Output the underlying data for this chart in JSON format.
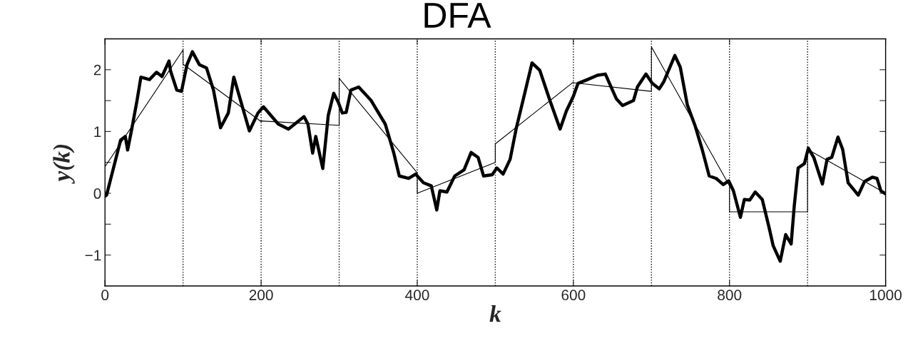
{
  "chart_data": {
    "type": "line",
    "title": "DFA",
    "xlabel": "k",
    "ylabel": "y(k)",
    "xlim": [
      0,
      1000
    ],
    "ylim": [
      -1.5,
      2.5
    ],
    "xticks": [
      0,
      200,
      400,
      600,
      800,
      1000
    ],
    "yticks": [
      -1,
      {
        "value": -0.5,
        "label": null
      },
      0,
      {
        "value": 0.5,
        "label": null
      },
      1,
      {
        "value": 1.5,
        "label": null
      },
      2
    ],
    "grid": false,
    "legend": false,
    "marker": "none",
    "ref_lines": [
      {
        "axis": "x",
        "value": 100,
        "color": "#000000",
        "line_style": "dotted"
      },
      {
        "axis": "x",
        "value": 200,
        "color": "#000000",
        "line_style": "dotted"
      },
      {
        "axis": "x",
        "value": 300,
        "color": "#000000",
        "line_style": "dotted"
      },
      {
        "axis": "x",
        "value": 400,
        "color": "#000000",
        "line_style": "dotted"
      },
      {
        "axis": "x",
        "value": 500,
        "color": "#000000",
        "line_style": "dotted"
      },
      {
        "axis": "x",
        "value": 600,
        "color": "#000000",
        "line_style": "dotted"
      },
      {
        "axis": "x",
        "value": 700,
        "color": "#000000",
        "line_style": "dotted"
      },
      {
        "axis": "x",
        "value": 800,
        "color": "#000000",
        "line_style": "dotted"
      },
      {
        "axis": "x",
        "value": 900,
        "color": "#000000",
        "line_style": "dotted"
      }
    ],
    "series": [
      {
        "color": "#000000",
        "line_style": "solid",
        "x": [
          0,
          2,
          20,
          26,
          29,
          34,
          41,
          46,
          57,
          66,
          73,
          82,
          84,
          92,
          98,
          105,
          112,
          121,
          130,
          139,
          148,
          158,
          165,
          173,
          185,
          196,
          203,
          222,
          235,
          255,
          260,
          266,
          270,
          279,
          286,
          293,
          299,
          304,
          309,
          315,
          325,
          341,
          359,
          370,
          377,
          389,
          398,
          408,
          418,
          425,
          429,
          438,
          448,
          460,
          469,
          478,
          485,
          496,
          502,
          510,
          519,
          527,
          536,
          547,
          557,
          570,
          583,
          591,
          600,
          606,
          618,
          631,
          641,
          655,
          663,
          677,
          682,
          693,
          701,
          710,
          716,
          730,
          737,
          746,
          756,
          765,
          774,
          783,
          792,
          799,
          805,
          814,
          819,
          826,
          833,
          842,
          851,
          856,
          865,
          872,
          879,
          883,
          888,
          896,
          901,
          908,
          919,
          925,
          931,
          939,
          945,
          952,
          965,
          973,
          983,
          989,
          994,
          1000
        ],
        "values": [
          -0.05,
          -0.03,
          0.86,
          0.92,
          0.7,
          1.02,
          1.5,
          1.88,
          1.84,
          1.96,
          1.89,
          2.14,
          1.98,
          1.67,
          1.65,
          2.08,
          2.29,
          2.08,
          2.03,
          1.67,
          1.06,
          1.3,
          1.88,
          1.53,
          1.01,
          1.3,
          1.4,
          1.12,
          1.04,
          1.24,
          1.12,
          0.65,
          0.92,
          0.4,
          1.26,
          1.62,
          1.47,
          1.3,
          1.31,
          1.67,
          1.72,
          1.5,
          1.12,
          0.65,
          0.28,
          0.24,
          0.31,
          0.17,
          0.12,
          -0.27,
          0.04,
          0.02,
          0.28,
          0.38,
          0.66,
          0.58,
          0.28,
          0.3,
          0.41,
          0.31,
          0.55,
          1.06,
          1.53,
          2.11,
          1.99,
          1.5,
          1.04,
          1.33,
          1.57,
          1.78,
          1.84,
          1.91,
          1.93,
          1.53,
          1.42,
          1.5,
          1.72,
          1.93,
          1.78,
          1.69,
          1.81,
          2.23,
          2.04,
          1.43,
          1.09,
          0.71,
          0.28,
          0.24,
          0.14,
          0.2,
          0.04,
          -0.39,
          -0.1,
          -0.11,
          0.02,
          -0.1,
          -0.57,
          -0.85,
          -1.1,
          -0.67,
          -0.82,
          -0.2,
          0.41,
          0.48,
          0.73,
          0.58,
          0.15,
          0.55,
          0.58,
          0.91,
          0.71,
          0.17,
          -0.03,
          0.19,
          0.26,
          0.24,
          0.04,
          -0.01
        ]
      },
      {
        "color": "#000000",
        "line_style": "solid",
        "x": [
          0,
          100,
          100,
          200,
          200,
          300,
          300,
          400,
          400,
          500,
          500,
          600,
          600,
          700,
          700,
          800,
          800,
          900,
          900,
          1000
        ],
        "values": [
          0.43,
          2.32,
          2.09,
          1.16,
          1.17,
          1.1,
          1.86,
          0.33,
          0.0,
          0.5,
          0.8,
          1.8,
          1.79,
          1.65,
          2.37,
          0.12,
          -0.3,
          -0.3,
          0.71,
          0.0
        ]
      }
    ]
  }
}
